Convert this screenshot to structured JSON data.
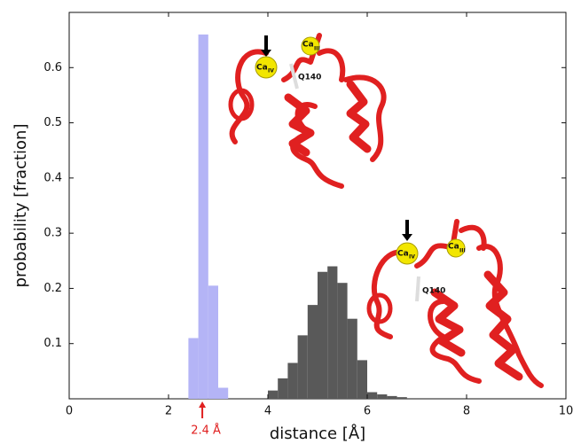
{
  "chart_data": {
    "type": "histogram",
    "xlabel": "distance [Å]",
    "ylabel": "probability [fraction]",
    "xlim": [
      0,
      10
    ],
    "xticks": [
      0,
      2,
      4,
      6,
      8,
      10
    ],
    "ylim": [
      0,
      0.7
    ],
    "yticks": [
      0.1,
      0.2,
      0.3,
      0.4,
      0.5,
      0.6
    ],
    "series": [
      {
        "color": "#b4b4f6",
        "bins": [
          2.4,
          2.6,
          2.8,
          3.0,
          3.2
        ],
        "values": [
          0.11,
          0.66,
          0.205,
          0.02
        ]
      },
      {
        "color": "#595959",
        "bins": [
          4.0,
          4.2,
          4.4,
          4.6,
          4.8,
          5.0,
          5.2,
          5.4,
          5.6,
          5.8,
          6.0,
          6.2,
          6.4,
          6.6,
          6.8
        ],
        "values": [
          0.015,
          0.037,
          0.065,
          0.115,
          0.17,
          0.23,
          0.24,
          0.21,
          0.145,
          0.07,
          0.012,
          0.008,
          0.005,
          0.003
        ]
      }
    ],
    "annotation": {
      "text": "2.4 Å",
      "x": 2.68,
      "color": "#e02020"
    },
    "insets": [
      {
        "labels": [
          "Ca",
          "IV",
          "Ca",
          "III",
          "Q140"
        ]
      },
      {
        "labels": [
          "Ca",
          "IV",
          "Ca",
          "III",
          "Q140"
        ]
      }
    ]
  }
}
